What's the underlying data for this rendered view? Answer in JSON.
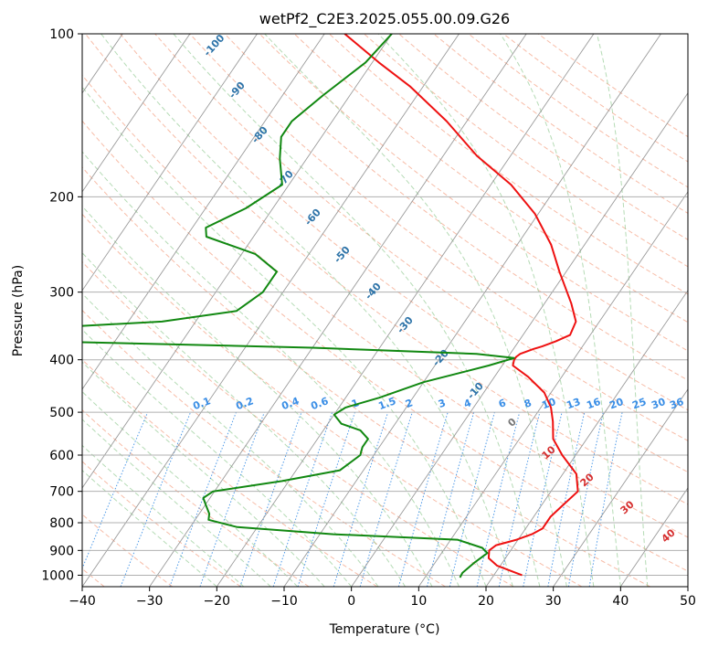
{
  "chart_data": {
    "type": "skew-t",
    "title": "wetPf2_C2E3.2025.055.00.09.G26",
    "xlabel": "Temperature (°C)",
    "ylabel": "Pressure (hPa)",
    "xlim": [
      -40,
      50
    ],
    "ylim": [
      1050,
      100
    ],
    "y_scale": "log",
    "x_ticks": [
      "−40",
      "−30",
      "−20",
      "−10",
      "0",
      "10",
      "20",
      "30",
      "40",
      "50"
    ],
    "x_tick_values": [
      -40,
      -30,
      -20,
      -10,
      0,
      10,
      20,
      30,
      40,
      50
    ],
    "y_ticks": [
      "100",
      "200",
      "300",
      "400",
      "500",
      "600",
      "700",
      "800",
      "900",
      "1000"
    ],
    "y_tick_values": [
      100,
      200,
      300,
      400,
      500,
      600,
      700,
      800,
      900,
      1000
    ],
    "grid": true,
    "colors": {
      "temperature": "#ee1111",
      "dewpoint": "#118811",
      "isotherm": "#8a8a8a",
      "dry_adiabat": "#f4a58a",
      "moist_adiabat": "#95cc95",
      "mixing_ratio": "#3a8ee6",
      "theta_e_labels": "#2d73a8",
      "dry_labels": "#d62f2f"
    },
    "series": [
      {
        "name": "",
        "kind": "temperature",
        "points": [
          [
            24.2,
            1000
          ],
          [
            19.5,
            960
          ],
          [
            17.5,
            930
          ],
          [
            16.8,
            900
          ],
          [
            17.3,
            880
          ],
          [
            19.8,
            860
          ],
          [
            21.5,
            840
          ],
          [
            22.5,
            820
          ],
          [
            22.5,
            780
          ],
          [
            23.2,
            740
          ],
          [
            24.0,
            700
          ],
          [
            22.0,
            650
          ],
          [
            18.0,
            600
          ],
          [
            15.0,
            560
          ],
          [
            13.2,
            520
          ],
          [
            11.5,
            490
          ],
          [
            9.0,
            460
          ],
          [
            5.0,
            430
          ],
          [
            1.6,
            410
          ],
          [
            1.2,
            400
          ],
          [
            1.2,
            395
          ],
          [
            1.5,
            390
          ],
          [
            3.0,
            382
          ],
          [
            4.0,
            378
          ],
          [
            5.5,
            370
          ],
          [
            7.0,
            360
          ],
          [
            6.5,
            340
          ],
          [
            4.0,
            315
          ],
          [
            -1.0,
            275
          ],
          [
            -5.0,
            245
          ],
          [
            -10.5,
            215
          ],
          [
            -17.0,
            190
          ],
          [
            -25.0,
            168
          ],
          [
            -33.0,
            145
          ],
          [
            -42.0,
            125
          ],
          [
            -49.0,
            113
          ],
          [
            -57.0,
            100
          ]
        ]
      },
      {
        "name": "",
        "kind": "dewpoint",
        "points": [
          [
            15.2,
            1010
          ],
          [
            15.1,
            990
          ],
          [
            15.8,
            950
          ],
          [
            16.8,
            910
          ],
          [
            15.5,
            890
          ],
          [
            11.0,
            860
          ],
          [
            -8.0,
            840
          ],
          [
            -23.0,
            815
          ],
          [
            -28.0,
            790
          ],
          [
            -28.5,
            770
          ],
          [
            -30.0,
            740
          ],
          [
            -31.0,
            720
          ],
          [
            -30.2,
            700
          ],
          [
            -21.0,
            670
          ],
          [
            -13.5,
            640
          ],
          [
            -12.0,
            600
          ],
          [
            -12.5,
            580
          ],
          [
            -12.5,
            560
          ],
          [
            -14.5,
            540
          ],
          [
            -18.0,
            525
          ],
          [
            -20.0,
            505
          ],
          [
            -19.0,
            490
          ],
          [
            -15.0,
            470
          ],
          [
            -10.0,
            440
          ],
          [
            -2.0,
            410
          ],
          [
            1.0,
            397
          ],
          [
            -5.0,
            390
          ],
          [
            -30.0,
            380
          ],
          [
            -70.0,
            370
          ],
          [
            -80.0,
            362
          ],
          [
            -82.0,
            355
          ],
          [
            -55.0,
            340
          ],
          [
            -45.0,
            325
          ],
          [
            -43.0,
            300
          ],
          [
            -43.0,
            275
          ],
          [
            -48.0,
            255
          ],
          [
            -57.0,
            237
          ],
          [
            -58.0,
            228
          ],
          [
            -54.0,
            210
          ],
          [
            -51.0,
            190
          ],
          [
            -54.0,
            170
          ],
          [
            -56.0,
            155
          ],
          [
            -56.0,
            145
          ],
          [
            -54.0,
            130
          ],
          [
            -51.0,
            113
          ],
          [
            -50.0,
            100
          ]
        ]
      }
    ],
    "theta_e_labels": [
      "-100",
      "-90",
      "-80",
      "-70",
      "-60",
      "-50",
      "-40",
      "-30",
      "-20",
      "-10"
    ],
    "dry_adiabat_labels": [
      "0",
      "10",
      "20",
      "30",
      "40"
    ],
    "mixing_ratio_labels": [
      "0.1",
      "0.2",
      "0.4",
      "0.6",
      "1",
      "1.5",
      "2",
      "3",
      "4",
      "6",
      "8",
      "10",
      "13",
      "16",
      "20",
      "25",
      "30",
      "36"
    ]
  }
}
